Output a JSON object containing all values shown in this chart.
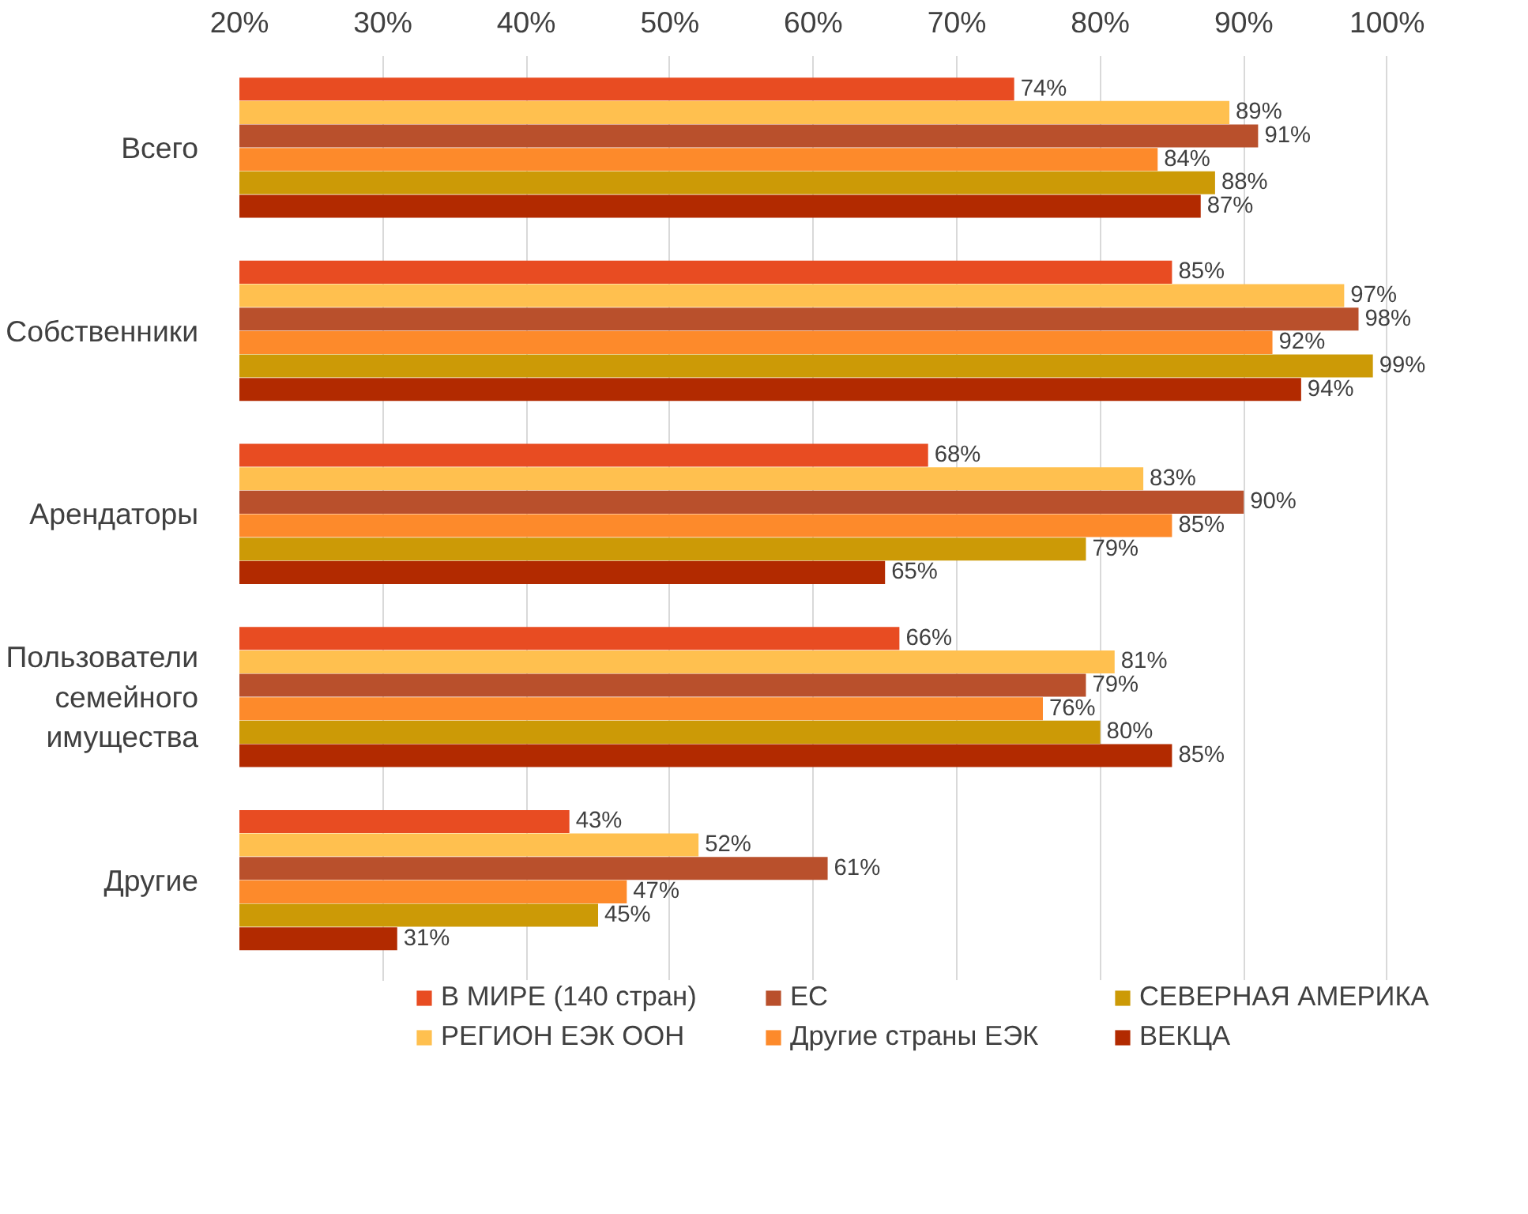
{
  "chart_data": {
    "type": "bar",
    "orientation": "horizontal",
    "categories": [
      "Всего",
      "Собственники",
      "Арендаторы",
      "Пользователи семейного имущества",
      "Другие"
    ],
    "series": [
      {
        "name": "В МИРЕ (140 стран)",
        "color": "#e84c22",
        "values": [
          74,
          85,
          68,
          66,
          43
        ]
      },
      {
        "name": "РЕГИОН ЕЭК ООН",
        "color": "#ffc04f",
        "values": [
          89,
          97,
          83,
          81,
          52
        ]
      },
      {
        "name": "ЕС",
        "color": "#b9502c",
        "values": [
          91,
          98,
          90,
          79,
          61
        ]
      },
      {
        "name": "Другие страны ЕЭК",
        "color": "#fd8a2b",
        "values": [
          84,
          92,
          85,
          76,
          47
        ]
      },
      {
        "name": "СЕВЕРНАЯ АМЕРИКА",
        "color": "#cc9a06",
        "values": [
          88,
          99,
          79,
          80,
          45
        ]
      },
      {
        "name": "ВЕКЦА",
        "color": "#b22a00",
        "values": [
          87,
          94,
          65,
          85,
          31
        ]
      }
    ],
    "xlim": [
      20,
      100
    ],
    "xticks": [
      {
        "value": 20,
        "label": "20%"
      },
      {
        "value": 30,
        "label": "30%"
      },
      {
        "value": 40,
        "label": "40%"
      },
      {
        "value": 50,
        "label": "50%"
      },
      {
        "value": 60,
        "label": "60%"
      },
      {
        "value": 70,
        "label": "70%"
      },
      {
        "value": 80,
        "label": "80%"
      },
      {
        "value": 90,
        "label": "90%"
      },
      {
        "value": 100,
        "label": "100%"
      }
    ],
    "grid": "x",
    "legend": "bottom",
    "value_labels": [
      [
        "74%",
        "85%",
        "68%",
        "66%",
        "43%"
      ],
      [
        "89%",
        "97%",
        "83%",
        "81%",
        "52%"
      ],
      [
        "91%",
        "98%",
        "90%",
        "79%",
        "61%"
      ],
      [
        "84%",
        "92%",
        "85%",
        "76%",
        "47%"
      ],
      [
        "88%",
        "99%",
        "79%",
        "80%",
        "45%"
      ],
      [
        "87%",
        "94%",
        "65%",
        "85%",
        "31%"
      ]
    ]
  }
}
